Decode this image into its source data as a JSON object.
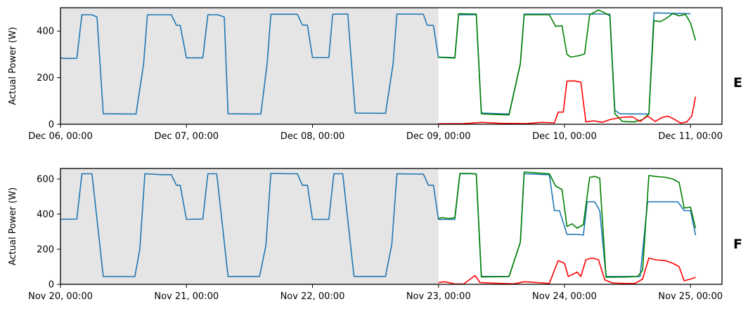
{
  "chart_data": [
    {
      "type": "line",
      "panel_label": "E",
      "ylabel": "Actual Power (W)",
      "xlim": [
        0,
        5.25
      ],
      "ylim": [
        0,
        500
      ],
      "yticks": [
        0,
        200,
        400
      ],
      "xticks": [
        {
          "x": 0,
          "label": "Dec 06, 00:00"
        },
        {
          "x": 1,
          "label": "Dec 07, 00:00"
        },
        {
          "x": 2,
          "label": "Dec 08, 00:00"
        },
        {
          "x": 3,
          "label": "Dec 09, 00:00"
        },
        {
          "x": 4,
          "label": "Dec 10, 00:00"
        },
        {
          "x": 5,
          "label": "Dec 11, 00:00"
        }
      ],
      "shaded_region": [
        0,
        3
      ],
      "series": [
        {
          "color": "#1f77b4",
          "points": [
            [
              0,
              285
            ],
            [
              0.04,
              282
            ],
            [
              0.13,
              283
            ],
            [
              0.17,
              470
            ],
            [
              0.25,
              470
            ],
            [
              0.29,
              460
            ],
            [
              0.34,
              45
            ],
            [
              0.6,
              44
            ],
            [
              0.66,
              260
            ],
            [
              0.69,
              470
            ],
            [
              0.88,
              470
            ],
            [
              0.92,
              425
            ],
            [
              0.95,
              424
            ],
            [
              1,
              285
            ],
            [
              1.13,
              285
            ],
            [
              1.17,
              470
            ],
            [
              1.25,
              470
            ],
            [
              1.3,
              460
            ],
            [
              1.33,
              45
            ],
            [
              1.59,
              44
            ],
            [
              1.64,
              260
            ],
            [
              1.67,
              472
            ],
            [
              1.88,
              472
            ],
            [
              1.92,
              426
            ],
            [
              1.96,
              425
            ],
            [
              2,
              286
            ],
            [
              2.13,
              286
            ],
            [
              2.16,
              472
            ],
            [
              2.28,
              473
            ],
            [
              2.34,
              48
            ],
            [
              2.58,
              47
            ],
            [
              2.64,
              260
            ],
            [
              2.67,
              473
            ],
            [
              2.88,
              472
            ],
            [
              2.91,
              425
            ],
            [
              2.96,
              424
            ],
            [
              3,
              285
            ]
          ]
        },
        {
          "color": "#1f77b4",
          "points": [
            [
              3,
              288
            ],
            [
              3.13,
              286
            ],
            [
              3.16,
              470
            ],
            [
              3.3,
              470
            ],
            [
              3.34,
              48
            ],
            [
              3.56,
              44
            ],
            [
              3.65,
              260
            ],
            [
              3.68,
              473
            ],
            [
              4,
              473
            ],
            [
              4.2,
              473
            ],
            [
              4.36,
              473
            ],
            [
              4.4,
              60
            ],
            [
              4.44,
              45
            ],
            [
              4.67,
              44
            ],
            [
              4.71,
              478
            ],
            [
              5,
              474
            ]
          ]
        },
        {
          "color": "#008000",
          "points": [
            [
              3,
              287
            ],
            [
              3.13,
              284
            ],
            [
              3.16,
              474
            ],
            [
              3.3,
              473
            ],
            [
              3.34,
              45
            ],
            [
              3.45,
              42
            ],
            [
              3.56,
              40
            ],
            [
              3.65,
              260
            ],
            [
              3.68,
              470
            ],
            [
              3.8,
              470
            ],
            [
              3.88,
              470
            ],
            [
              3.93,
              420
            ],
            [
              3.98,
              423
            ],
            [
              4.02,
              300
            ],
            [
              4.05,
              288
            ],
            [
              4.12,
              295
            ],
            [
              4.16,
              302
            ],
            [
              4.2,
              470
            ],
            [
              4.27,
              490
            ],
            [
              4.32,
              478
            ],
            [
              4.36,
              465
            ],
            [
              4.4,
              45
            ],
            [
              4.46,
              12
            ],
            [
              4.55,
              10
            ],
            [
              4.62,
              20
            ],
            [
              4.67,
              44
            ],
            [
              4.71,
              445
            ],
            [
              4.76,
              440
            ],
            [
              4.81,
              455
            ],
            [
              4.86,
              475
            ],
            [
              4.91,
              465
            ],
            [
              4.96,
              472
            ],
            [
              5,
              435
            ],
            [
              5.04,
              360
            ]
          ]
        },
        {
          "color": "#ff0000",
          "points": [
            [
              3,
              2
            ],
            [
              3.2,
              3
            ],
            [
              3.35,
              8
            ],
            [
              3.5,
              4
            ],
            [
              3.7,
              3
            ],
            [
              3.82,
              8
            ],
            [
              3.92,
              6
            ],
            [
              3.95,
              52
            ],
            [
              3.99,
              52
            ],
            [
              4.02,
              185
            ],
            [
              4.08,
              186
            ],
            [
              4.13,
              180
            ],
            [
              4.17,
              10
            ],
            [
              4.23,
              15
            ],
            [
              4.3,
              8
            ],
            [
              4.36,
              20
            ],
            [
              4.46,
              30
            ],
            [
              4.54,
              32
            ],
            [
              4.6,
              12
            ],
            [
              4.66,
              35
            ],
            [
              4.72,
              12
            ],
            [
              4.77,
              28
            ],
            [
              4.82,
              35
            ],
            [
              4.87,
              22
            ],
            [
              4.92,
              5
            ],
            [
              4.97,
              10
            ],
            [
              5.01,
              35
            ],
            [
              5.04,
              118
            ]
          ]
        }
      ]
    },
    {
      "type": "line",
      "panel_label": "F",
      "ylabel": "Actual Power (W)",
      "xlim": [
        0,
        5.25
      ],
      "ylim": [
        0,
        660
      ],
      "yticks": [
        0,
        200,
        400,
        600
      ],
      "xticks": [
        {
          "x": 0,
          "label": "Nov 20, 00:00"
        },
        {
          "x": 1,
          "label": "Nov 21, 00:00"
        },
        {
          "x": 2,
          "label": "Nov 22, 00:00"
        },
        {
          "x": 3,
          "label": "Nov 23, 00:00"
        },
        {
          "x": 4,
          "label": "Nov 24, 00:00"
        },
        {
          "x": 5,
          "label": "Nov 25, 00:00"
        }
      ],
      "shaded_region": [
        0,
        3
      ],
      "series": [
        {
          "color": "#1f77b4",
          "points": [
            [
              0,
              370
            ],
            [
              0.13,
              372
            ],
            [
              0.17,
              630
            ],
            [
              0.25,
              630
            ],
            [
              0.34,
              45
            ],
            [
              0.59,
              44
            ],
            [
              0.63,
              200
            ],
            [
              0.67,
              630
            ],
            [
              0.8,
              625
            ],
            [
              0.88,
              625
            ],
            [
              0.92,
              565
            ],
            [
              0.95,
              565
            ],
            [
              1,
              370
            ],
            [
              1.13,
              372
            ],
            [
              1.17,
              630
            ],
            [
              1.24,
              630
            ],
            [
              1.33,
              45
            ],
            [
              1.58,
              45
            ],
            [
              1.63,
              220
            ],
            [
              1.67,
              632
            ],
            [
              1.83,
              630
            ],
            [
              1.88,
              630
            ],
            [
              1.92,
              565
            ],
            [
              1.96,
              565
            ],
            [
              2,
              370
            ],
            [
              2.13,
              370
            ],
            [
              2.17,
              630
            ],
            [
              2.24,
              630
            ],
            [
              2.33,
              45
            ],
            [
              2.58,
              45
            ],
            [
              2.63,
              230
            ],
            [
              2.67,
              630
            ],
            [
              2.84,
              628
            ],
            [
              2.88,
              628
            ],
            [
              2.92,
              565
            ],
            [
              2.96,
              565
            ],
            [
              3,
              370
            ]
          ]
        },
        {
          "color": "#1f77b4",
          "points": [
            [
              3,
              370
            ],
            [
              3.13,
              370
            ],
            [
              3.17,
              630
            ],
            [
              3.3,
              630
            ],
            [
              3.34,
              45
            ],
            [
              3.56,
              45
            ],
            [
              3.65,
              240
            ],
            [
              3.68,
              630
            ],
            [
              3.86,
              625
            ],
            [
              3.88,
              625
            ],
            [
              3.92,
              420
            ],
            [
              3.96,
              420
            ],
            [
              4.02,
              285
            ],
            [
              4.1,
              285
            ],
            [
              4.15,
              280
            ],
            [
              4.18,
              470
            ],
            [
              4.24,
              470
            ],
            [
              4.28,
              420
            ],
            [
              4.33,
              45
            ],
            [
              4.52,
              45
            ],
            [
              4.6,
              45
            ],
            [
              4.66,
              470
            ],
            [
              4.9,
              470
            ],
            [
              4.95,
              420
            ],
            [
              5,
              420
            ],
            [
              5.04,
              280
            ]
          ]
        },
        {
          "color": "#008000",
          "points": [
            [
              3,
              375
            ],
            [
              3.03,
              380
            ],
            [
              3.08,
              375
            ],
            [
              3.13,
              380
            ],
            [
              3.17,
              632
            ],
            [
              3.25,
              632
            ],
            [
              3.3,
              628
            ],
            [
              3.34,
              42
            ],
            [
              3.56,
              44
            ],
            [
              3.65,
              240
            ],
            [
              3.68,
              640
            ],
            [
              3.88,
              630
            ],
            [
              3.93,
              560
            ],
            [
              3.98,
              540
            ],
            [
              4.02,
              330
            ],
            [
              4.06,
              345
            ],
            [
              4.1,
              320
            ],
            [
              4.15,
              340
            ],
            [
              4.2,
              610
            ],
            [
              4.24,
              615
            ],
            [
              4.28,
              605
            ],
            [
              4.33,
              40
            ],
            [
              4.5,
              42
            ],
            [
              4.58,
              45
            ],
            [
              4.62,
              80
            ],
            [
              4.67,
              620
            ],
            [
              4.72,
              615
            ],
            [
              4.8,
              610
            ],
            [
              4.86,
              600
            ],
            [
              4.91,
              580
            ],
            [
              4.95,
              435
            ],
            [
              5,
              440
            ],
            [
              5.04,
              320
            ]
          ]
        },
        {
          "color": "#ff0000",
          "points": [
            [
              3,
              10
            ],
            [
              3.05,
              15
            ],
            [
              3.13,
              2
            ],
            [
              3.2,
              2
            ],
            [
              3.29,
              50
            ],
            [
              3.33,
              10
            ],
            [
              3.5,
              5
            ],
            [
              3.6,
              3
            ],
            [
              3.68,
              15
            ],
            [
              3.82,
              8
            ],
            [
              3.88,
              5
            ],
            [
              3.95,
              135
            ],
            [
              4,
              120
            ],
            [
              4.03,
              45
            ],
            [
              4.06,
              55
            ],
            [
              4.1,
              70
            ],
            [
              4.13,
              45
            ],
            [
              4.17,
              140
            ],
            [
              4.22,
              150
            ],
            [
              4.27,
              140
            ],
            [
              4.32,
              25
            ],
            [
              4.38,
              8
            ],
            [
              4.48,
              5
            ],
            [
              4.56,
              5
            ],
            [
              4.62,
              30
            ],
            [
              4.67,
              150
            ],
            [
              4.72,
              140
            ],
            [
              4.8,
              135
            ],
            [
              4.86,
              120
            ],
            [
              4.91,
              100
            ],
            [
              4.95,
              20
            ],
            [
              5,
              30
            ],
            [
              5.04,
              40
            ]
          ]
        }
      ]
    }
  ]
}
